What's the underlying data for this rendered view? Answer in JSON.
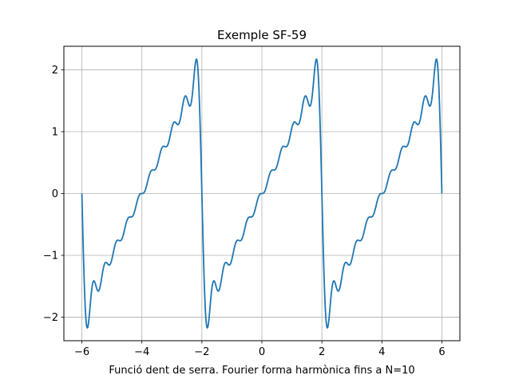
{
  "chart_data": {
    "type": "line",
    "title": "Exemple SF-59",
    "xlabel": "Funció dent de serra. Fourier forma harmònica fins a N=10",
    "ylabel": "",
    "xlim": [
      -6.6,
      6.6
    ],
    "ylim": [
      -2.38,
      2.38
    ],
    "grid": true,
    "legend": "none",
    "x_ticks": [
      -6,
      -4,
      -2,
      0,
      2,
      4,
      6
    ],
    "y_ticks": [
      -2,
      -1,
      0,
      1,
      2
    ],
    "x_tick_labels": [
      "−6",
      "−4",
      "−2",
      "0",
      "2",
      "4",
      "6"
    ],
    "y_tick_labels": [
      "−2",
      "−1",
      "0",
      "1",
      "2"
    ],
    "series": [
      {
        "color": "#1f77b4",
        "function": "partial Fourier sum of sawtooth, period 4, amplitude 2, harmonics n=1..10",
        "period": 4,
        "amplitude": 2,
        "harmonics": 10,
        "domain": [
          -6,
          6
        ],
        "samples": 1200
      }
    ]
  }
}
